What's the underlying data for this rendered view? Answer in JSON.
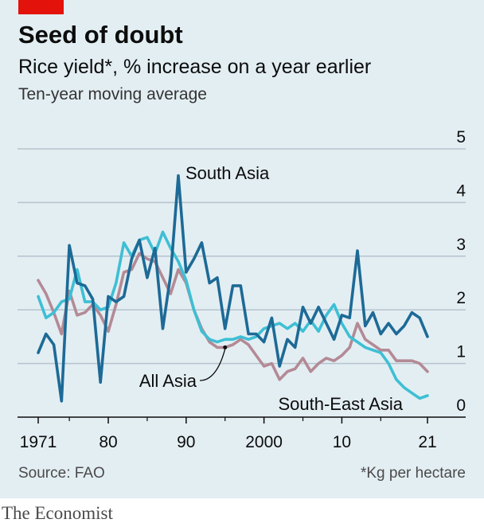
{
  "title": "Seed of doubt",
  "subtitle": "Rice yield*, % increase on a year earlier",
  "subsubtitle": "Ten-year moving average",
  "source": "Source: FAO",
  "footnote": "*Kg per hectare",
  "brand": "The Economist",
  "colors": {
    "panel": "#e3eef3",
    "red_tag": "#e3120b",
    "grid": "#b4c3cc",
    "south_asia": "#1d6a96",
    "all_asia": "#b38a95",
    "south_east_asia": "#3ebfd4"
  },
  "chart_data": {
    "type": "line",
    "ylim": [
      0,
      5
    ],
    "yticks": [
      0,
      1,
      2,
      3,
      4,
      5
    ],
    "xlim": [
      1971,
      2021
    ],
    "xticks": [
      {
        "value": 1971,
        "label": "1971"
      },
      {
        "value": 1980,
        "label": "80"
      },
      {
        "value": 1990,
        "label": "90"
      },
      {
        "value": 2000,
        "label": "2000"
      },
      {
        "value": 2010,
        "label": "10"
      },
      {
        "value": 2021,
        "label": "21"
      }
    ],
    "grid": true,
    "series": [
      {
        "name": "All Asia",
        "color_key": "all_asia",
        "x": [
          1971,
          1972,
          1973,
          1974,
          1975,
          1976,
          1977,
          1978,
          1979,
          1980,
          1981,
          1982,
          1983,
          1984,
          1985,
          1986,
          1987,
          1988,
          1989,
          1990,
          1991,
          1992,
          1993,
          1994,
          1995,
          1996,
          1997,
          1998,
          1999,
          2000,
          2001,
          2002,
          2003,
          2004,
          2005,
          2006,
          2007,
          2008,
          2009,
          2010,
          2011,
          2012,
          2013,
          2014,
          2015,
          2016,
          2017,
          2018,
          2019,
          2020,
          2021
        ],
        "y": [
          2.55,
          2.3,
          1.95,
          1.55,
          2.35,
          1.9,
          1.95,
          2.1,
          1.9,
          1.6,
          2.1,
          2.7,
          2.75,
          3.05,
          2.95,
          2.9,
          2.6,
          2.3,
          2.75,
          2.5,
          2.0,
          1.65,
          1.4,
          1.3,
          1.3,
          1.35,
          1.45,
          1.35,
          1.15,
          0.95,
          1.0,
          0.7,
          0.85,
          0.9,
          1.1,
          0.85,
          1.0,
          1.1,
          1.05,
          1.15,
          1.3,
          1.75,
          1.45,
          1.35,
          1.25,
          1.25,
          1.05,
          1.05,
          1.05,
          1.0,
          0.85
        ]
      },
      {
        "name": "South-East Asia",
        "color_key": "south_east_asia",
        "x": [
          1971,
          1972,
          1973,
          1974,
          1975,
          1976,
          1977,
          1978,
          1979,
          1980,
          1981,
          1982,
          1983,
          1984,
          1985,
          1986,
          1987,
          1988,
          1989,
          1990,
          1991,
          1992,
          1993,
          1994,
          1995,
          1996,
          1997,
          1998,
          1999,
          2000,
          2001,
          2002,
          2003,
          2004,
          2005,
          2006,
          2007,
          2008,
          2009,
          2010,
          2011,
          2012,
          2013,
          2014,
          2015,
          2016,
          2017,
          2018,
          2019,
          2020,
          2021
        ],
        "y": [
          2.25,
          1.85,
          1.95,
          2.15,
          2.2,
          2.75,
          2.15,
          2.15,
          2.0,
          2.05,
          2.5,
          3.25,
          3.0,
          3.3,
          3.35,
          3.05,
          3.45,
          3.15,
          2.9,
          2.55,
          2.0,
          1.6,
          1.45,
          1.4,
          1.45,
          1.45,
          1.5,
          1.45,
          1.5,
          1.65,
          1.7,
          1.75,
          1.65,
          1.75,
          1.6,
          1.8,
          1.6,
          1.9,
          2.1,
          1.75,
          1.5,
          1.4,
          1.3,
          1.25,
          1.2,
          1.0,
          0.7,
          0.55,
          0.45,
          0.35,
          0.4
        ]
      },
      {
        "name": "South Asia",
        "color_key": "south_asia",
        "x": [
          1971,
          1972,
          1973,
          1974,
          1975,
          1976,
          1977,
          1978,
          1979,
          1980,
          1981,
          1982,
          1983,
          1984,
          1985,
          1986,
          1987,
          1988,
          1989,
          1990,
          1991,
          1992,
          1993,
          1994,
          1995,
          1996,
          1997,
          1998,
          1999,
          2000,
          2001,
          2002,
          2003,
          2004,
          2005,
          2006,
          2007,
          2008,
          2009,
          2010,
          2011,
          2012,
          2013,
          2014,
          2015,
          2016,
          2017,
          2018,
          2019,
          2020,
          2021
        ],
        "y": [
          1.2,
          1.55,
          1.35,
          0.3,
          3.2,
          2.5,
          2.45,
          2.2,
          0.65,
          2.25,
          2.15,
          2.25,
          2.95,
          3.3,
          2.6,
          3.15,
          1.65,
          2.65,
          4.5,
          2.7,
          2.95,
          3.25,
          2.5,
          2.6,
          1.65,
          2.45,
          2.45,
          1.55,
          1.55,
          1.4,
          1.85,
          0.95,
          1.45,
          1.3,
          2.05,
          1.75,
          2.05,
          1.75,
          1.45,
          1.9,
          1.85,
          3.1,
          1.7,
          1.95,
          1.55,
          1.75,
          1.55,
          1.7,
          1.95,
          1.85,
          1.5
        ]
      }
    ],
    "annotations": [
      {
        "text": "South Asia",
        "series": "South Asia"
      },
      {
        "text": "All Asia",
        "series": "All Asia"
      },
      {
        "text": "South-East Asia",
        "series": "South-East Asia"
      }
    ]
  }
}
